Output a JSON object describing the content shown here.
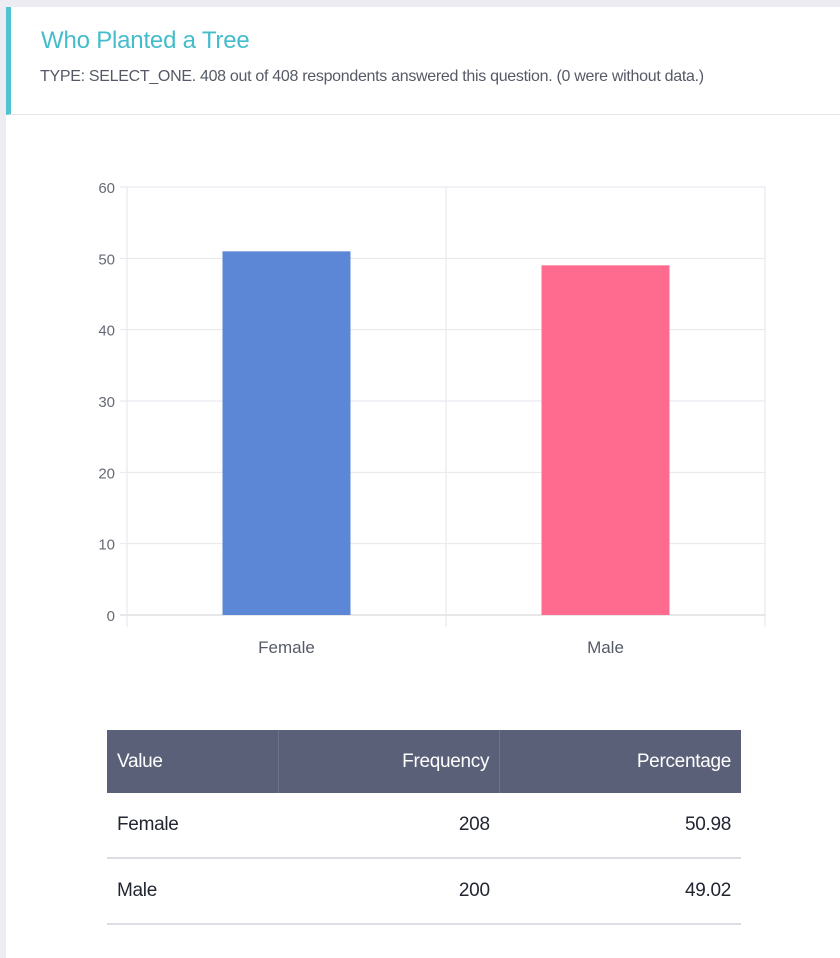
{
  "header": {
    "title": "Who Planted a Tree",
    "subtitle": "TYPE: SELECT_ONE. 408 out of 408 respondents answered this question. (0 were without data.)"
  },
  "colors": {
    "accent": "#4fc3d2",
    "female_bar": "#5b87d6",
    "male_bar": "#ff6b8f",
    "table_header": "#5b6079"
  },
  "chart_data": {
    "type": "bar",
    "categories": [
      "Female",
      "Male"
    ],
    "values": [
      50.98,
      49.02
    ],
    "colors": [
      "#5b87d6",
      "#ff6b8f"
    ],
    "yticks": [
      "0",
      "10",
      "20",
      "30",
      "40",
      "50",
      "60"
    ],
    "ylim": [
      0,
      60
    ],
    "grid": true,
    "legend": "none"
  },
  "table": {
    "headers": [
      "Value",
      "Frequency",
      "Percentage"
    ],
    "rows": [
      {
        "value": "Female",
        "frequency": "208",
        "percentage": "50.98"
      },
      {
        "value": "Male",
        "frequency": "200",
        "percentage": "49.02"
      }
    ]
  }
}
